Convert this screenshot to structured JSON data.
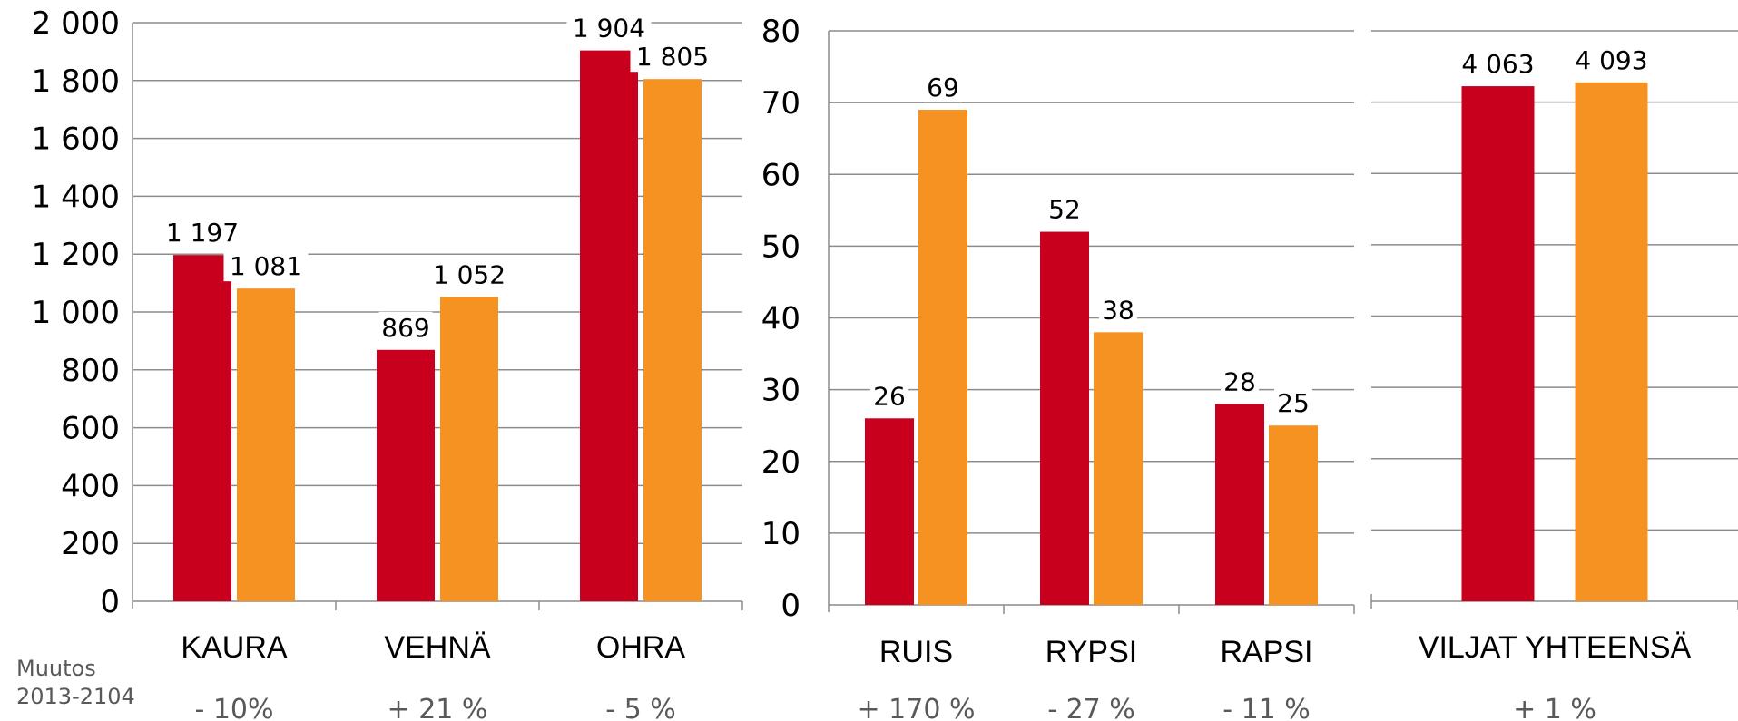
{
  "colors": {
    "series_a": "#c8001e",
    "series_b": "#f59222",
    "grid": "#8c8c8c",
    "text": "#000000",
    "muted": "#595959"
  },
  "change_label": {
    "line1": "Muutos",
    "line2": "2013-2104"
  },
  "chart_data": [
    {
      "type": "bar",
      "categories": [
        "KAURA",
        "VEHNÄ",
        "OHRA"
      ],
      "series": [
        {
          "values": [
            1197,
            869,
            1904
          ]
        },
        {
          "values": [
            1081,
            1052,
            1805
          ]
        }
      ],
      "value_labels": [
        [
          "1 197",
          "869",
          "1 904"
        ],
        [
          "1 081",
          "1 052",
          "1 805"
        ]
      ],
      "yticks": [
        "0",
        "200",
        "400",
        "600",
        "800",
        "1 000",
        "1 200",
        "1 400",
        "1 600",
        "1 800",
        "2 000"
      ],
      "ylim": [
        0,
        2000
      ],
      "grid": true,
      "changes": [
        "- 10%",
        "+ 21 %",
        "- 5 %"
      ]
    },
    {
      "type": "bar",
      "categories": [
        "RUIS",
        "RYPSI",
        "RAPSI"
      ],
      "series": [
        {
          "values": [
            26,
            52,
            28
          ]
        },
        {
          "values": [
            69,
            38,
            25
          ]
        }
      ],
      "value_labels": [
        [
          "26",
          "52",
          "28"
        ],
        [
          "69",
          "38",
          "25"
        ]
      ],
      "yticks": [
        "0",
        "10",
        "20",
        "30",
        "40",
        "50",
        "60",
        "70",
        "80"
      ],
      "ylim": [
        0,
        80
      ],
      "grid": true,
      "changes": [
        "+ 170 %",
        "- 27 %",
        "- 11 %"
      ]
    },
    {
      "type": "bar",
      "categories": [
        "VILJAT YHTEENSÄ"
      ],
      "series": [
        {
          "values": [
            4063
          ]
        },
        {
          "values": [
            4093
          ]
        }
      ],
      "value_labels": [
        [
          "4 063"
        ],
        [
          "4 093"
        ]
      ],
      "yticks": [],
      "ylim": [
        0,
        4500
      ],
      "grid": true,
      "changes": [
        "+ 1 %"
      ]
    }
  ]
}
